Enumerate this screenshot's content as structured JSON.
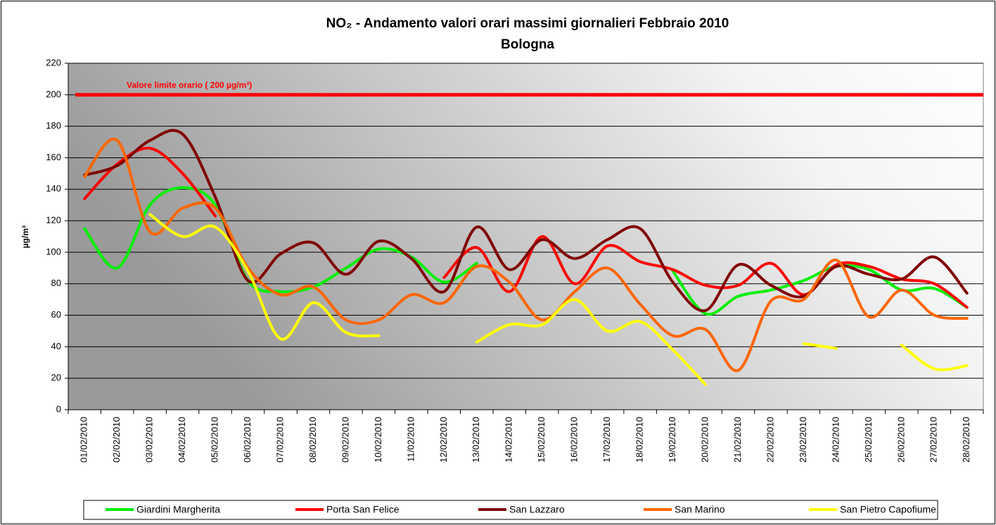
{
  "chart_data": {
    "type": "line",
    "title": "NO₂ - Andamento valori orari massimi giornalieri Febbraio 2010",
    "subtitle": "Bologna",
    "y_label": "µg/m³",
    "annotation": "Valore limite orario ( 200 µg/m³)",
    "limit": 200,
    "limit_color": "#ff0000",
    "categories": [
      "01/02/2010",
      "02/02/2010",
      "03/02/2010",
      "04/02/2010",
      "05/02/2010",
      "06/02/2010",
      "07/02/2010",
      "08/02/2010",
      "09/02/2010",
      "10/02/2010",
      "11/02/2010",
      "12/02/2010",
      "13/02/2010",
      "14/02/2010",
      "15/02/2010",
      "16/02/2010",
      "17/02/2010",
      "18/02/2010",
      "19/02/2010",
      "20/02/2010",
      "21/02/2010",
      "22/02/2010",
      "23/02/2010",
      "24/02/2010",
      "25/02/2010",
      "26/02/2010",
      "27/02/2010",
      "28/02/2010"
    ],
    "series": [
      {
        "name": "Giardini Margherita",
        "color": "#00ee00",
        "values": [
          115,
          90,
          130,
          141,
          130,
          82,
          75,
          78,
          90,
          102,
          97,
          81,
          93,
          null,
          null,
          null,
          null,
          null,
          88,
          61,
          72,
          76,
          82,
          91,
          89,
          76,
          77,
          65
        ]
      },
      {
        "name": "Porta San Felice",
        "color": "#ff0000",
        "values": [
          134,
          156,
          166,
          150,
          123,
          null,
          null,
          null,
          null,
          null,
          null,
          84,
          103,
          75,
          110,
          80,
          104,
          94,
          89,
          79,
          79,
          93,
          73,
          92,
          91,
          83,
          80,
          65
        ]
      },
      {
        "name": "San Lazzaro",
        "color": "#800000",
        "values": [
          149,
          155,
          171,
          175,
          135,
          82,
          99,
          106,
          86,
          107,
          96,
          75,
          116,
          89,
          108,
          96,
          108,
          115,
          81,
          63,
          92,
          79,
          72,
          91,
          86,
          83,
          97,
          74
        ]
      },
      {
        "name": "San Marino",
        "color": "#ff6600",
        "values": [
          148,
          171,
          113,
          128,
          128,
          90,
          73,
          78,
          57,
          57,
          73,
          68,
          91,
          81,
          57,
          75,
          90,
          67,
          47,
          51,
          25,
          69,
          70,
          95,
          59,
          76,
          60,
          58
        ]
      },
      {
        "name": "San Pietro Capofiume",
        "color": "#ffff00",
        "values": [
          null,
          null,
          124,
          110,
          116,
          88,
          45,
          68,
          49,
          47,
          null,
          null,
          43,
          54,
          54,
          70,
          50,
          56,
          38,
          16,
          null,
          null,
          42,
          39,
          null,
          41,
          26,
          28
        ]
      }
    ],
    "ylim": [
      0,
      220
    ],
    "yticks": [
      0,
      20,
      40,
      60,
      80,
      100,
      120,
      140,
      160,
      180,
      200,
      220
    ],
    "grid": true,
    "legend": "bottom",
    "smooth": true
  }
}
